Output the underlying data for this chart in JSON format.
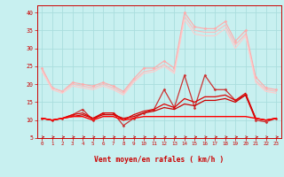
{
  "x": [
    0,
    1,
    2,
    3,
    4,
    5,
    6,
    7,
    8,
    9,
    10,
    11,
    12,
    13,
    14,
    15,
    16,
    17,
    18,
    19,
    20,
    21,
    22,
    23
  ],
  "lines": [
    {
      "color": "#ffaaaa",
      "lw": 0.8,
      "marker": "D",
      "markersize": 1.5,
      "values": [
        24.5,
        19.0,
        18.0,
        20.5,
        20.0,
        19.5,
        20.5,
        19.5,
        18.0,
        21.5,
        24.5,
        24.5,
        26.5,
        24.5,
        40.0,
        36.0,
        35.5,
        35.5,
        37.5,
        32.0,
        35.0,
        22.0,
        19.0,
        18.5
      ]
    },
    {
      "color": "#ffbbbb",
      "lw": 0.8,
      "marker": null,
      "values": [
        24.0,
        19.0,
        18.0,
        20.0,
        19.5,
        19.0,
        20.0,
        19.0,
        17.5,
        21.0,
        23.5,
        24.0,
        25.5,
        23.5,
        39.0,
        35.0,
        34.5,
        34.5,
        36.5,
        31.0,
        34.0,
        21.0,
        18.5,
        18.0
      ]
    },
    {
      "color": "#ffcccc",
      "lw": 0.8,
      "marker": null,
      "values": [
        23.5,
        18.5,
        17.5,
        19.5,
        19.0,
        18.5,
        19.5,
        18.5,
        17.0,
        20.5,
        23.0,
        23.5,
        25.0,
        23.0,
        38.0,
        34.0,
        33.5,
        33.5,
        35.5,
        30.0,
        33.5,
        20.5,
        18.0,
        17.5
      ]
    },
    {
      "color": "#cc3333",
      "lw": 0.9,
      "marker": "D",
      "markersize": 1.5,
      "values": [
        10.5,
        10.0,
        10.5,
        11.5,
        13.0,
        10.0,
        12.0,
        12.0,
        8.5,
        10.5,
        12.0,
        13.0,
        18.5,
        13.5,
        22.5,
        13.5,
        22.5,
        18.5,
        18.5,
        15.5,
        17.0,
        10.0,
        9.5,
        10.5
      ]
    },
    {
      "color": "#cc0000",
      "lw": 0.9,
      "marker": null,
      "values": [
        10.5,
        10.0,
        10.5,
        11.0,
        11.5,
        10.5,
        11.5,
        11.5,
        10.5,
        11.0,
        12.0,
        12.5,
        13.5,
        13.0,
        14.5,
        14.0,
        15.5,
        15.5,
        16.0,
        15.0,
        17.0,
        10.5,
        10.0,
        10.5
      ]
    },
    {
      "color": "#dd0000",
      "lw": 0.9,
      "marker": null,
      "values": [
        10.5,
        10.0,
        10.5,
        11.5,
        12.0,
        10.5,
        12.0,
        12.0,
        10.0,
        11.5,
        12.5,
        13.0,
        14.5,
        13.5,
        16.0,
        15.0,
        16.5,
        16.5,
        17.0,
        15.5,
        17.5,
        10.5,
        10.0,
        10.5
      ]
    },
    {
      "color": "#ff0000",
      "lw": 1.0,
      "marker": null,
      "values": [
        10.5,
        10.0,
        10.5,
        11.0,
        11.0,
        10.0,
        11.0,
        11.0,
        10.0,
        10.5,
        11.0,
        11.0,
        11.0,
        11.0,
        11.0,
        11.0,
        11.0,
        11.0,
        11.0,
        11.0,
        11.0,
        10.5,
        10.0,
        10.5
      ]
    }
  ],
  "xlabel": "Vent moyen/en rafales ( km/h )",
  "ylabel_ticks": [
    5,
    10,
    15,
    20,
    25,
    30,
    35,
    40
  ],
  "xlim": [
    -0.5,
    23.5
  ],
  "ylim": [
    5,
    42
  ],
  "bg_color": "#c8f0f0",
  "grid_color": "#aadddd",
  "axis_color": "#cc0000",
  "tick_color": "#cc0000",
  "label_color": "#cc0000"
}
